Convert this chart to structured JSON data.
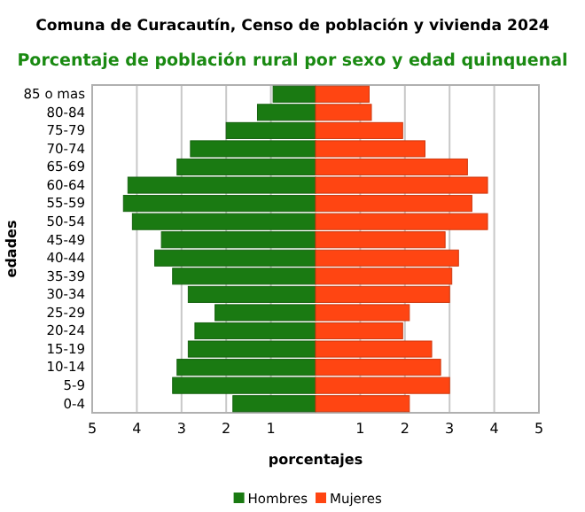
{
  "chart_data": {
    "type": "bar",
    "orientation": "horizontal",
    "title": "Comuna de Curacautín, Censo de población y vivienda 2024",
    "subtitle": "Porcentaje de población rural por sexo y edad quinquenal",
    "xlabel": "porcentajes",
    "ylabel": "edades",
    "categories": [
      "85 o mas",
      "80-84",
      "75-79",
      "70-74",
      "65-69",
      "60-64",
      "55-59",
      "50-54",
      "45-49",
      "40-44",
      "35-39",
      "30-34",
      "25-29",
      "20-24",
      "15-19",
      "10-14",
      "5-9",
      "0-4"
    ],
    "series": [
      {
        "name": "Hombres",
        "color": "#1a7a12",
        "values": [
          -0.95,
          -1.3,
          -2.0,
          -2.8,
          -3.1,
          -4.2,
          -4.3,
          -4.1,
          -3.45,
          -3.6,
          -3.2,
          -2.85,
          -2.25,
          -2.7,
          -2.85,
          -3.1,
          -3.2,
          -1.85
        ]
      },
      {
        "name": "Mujeres",
        "color": "#ff4512",
        "values": [
          1.2,
          1.25,
          1.95,
          2.45,
          3.4,
          3.85,
          3.5,
          3.85,
          2.9,
          3.2,
          3.05,
          3.0,
          2.1,
          1.95,
          2.6,
          2.8,
          3.0,
          2.1
        ]
      }
    ],
    "xlim": [
      -5,
      5
    ],
    "xticks": [
      {
        "value": -5,
        "label": "5"
      },
      {
        "value": -4,
        "label": "4"
      },
      {
        "value": -3,
        "label": "3"
      },
      {
        "value": -2,
        "label": "2"
      },
      {
        "value": -1,
        "label": "1"
      },
      1,
      2,
      3,
      4,
      5
    ],
    "grid": "x",
    "legend": "bottom",
    "stacked": true
  }
}
